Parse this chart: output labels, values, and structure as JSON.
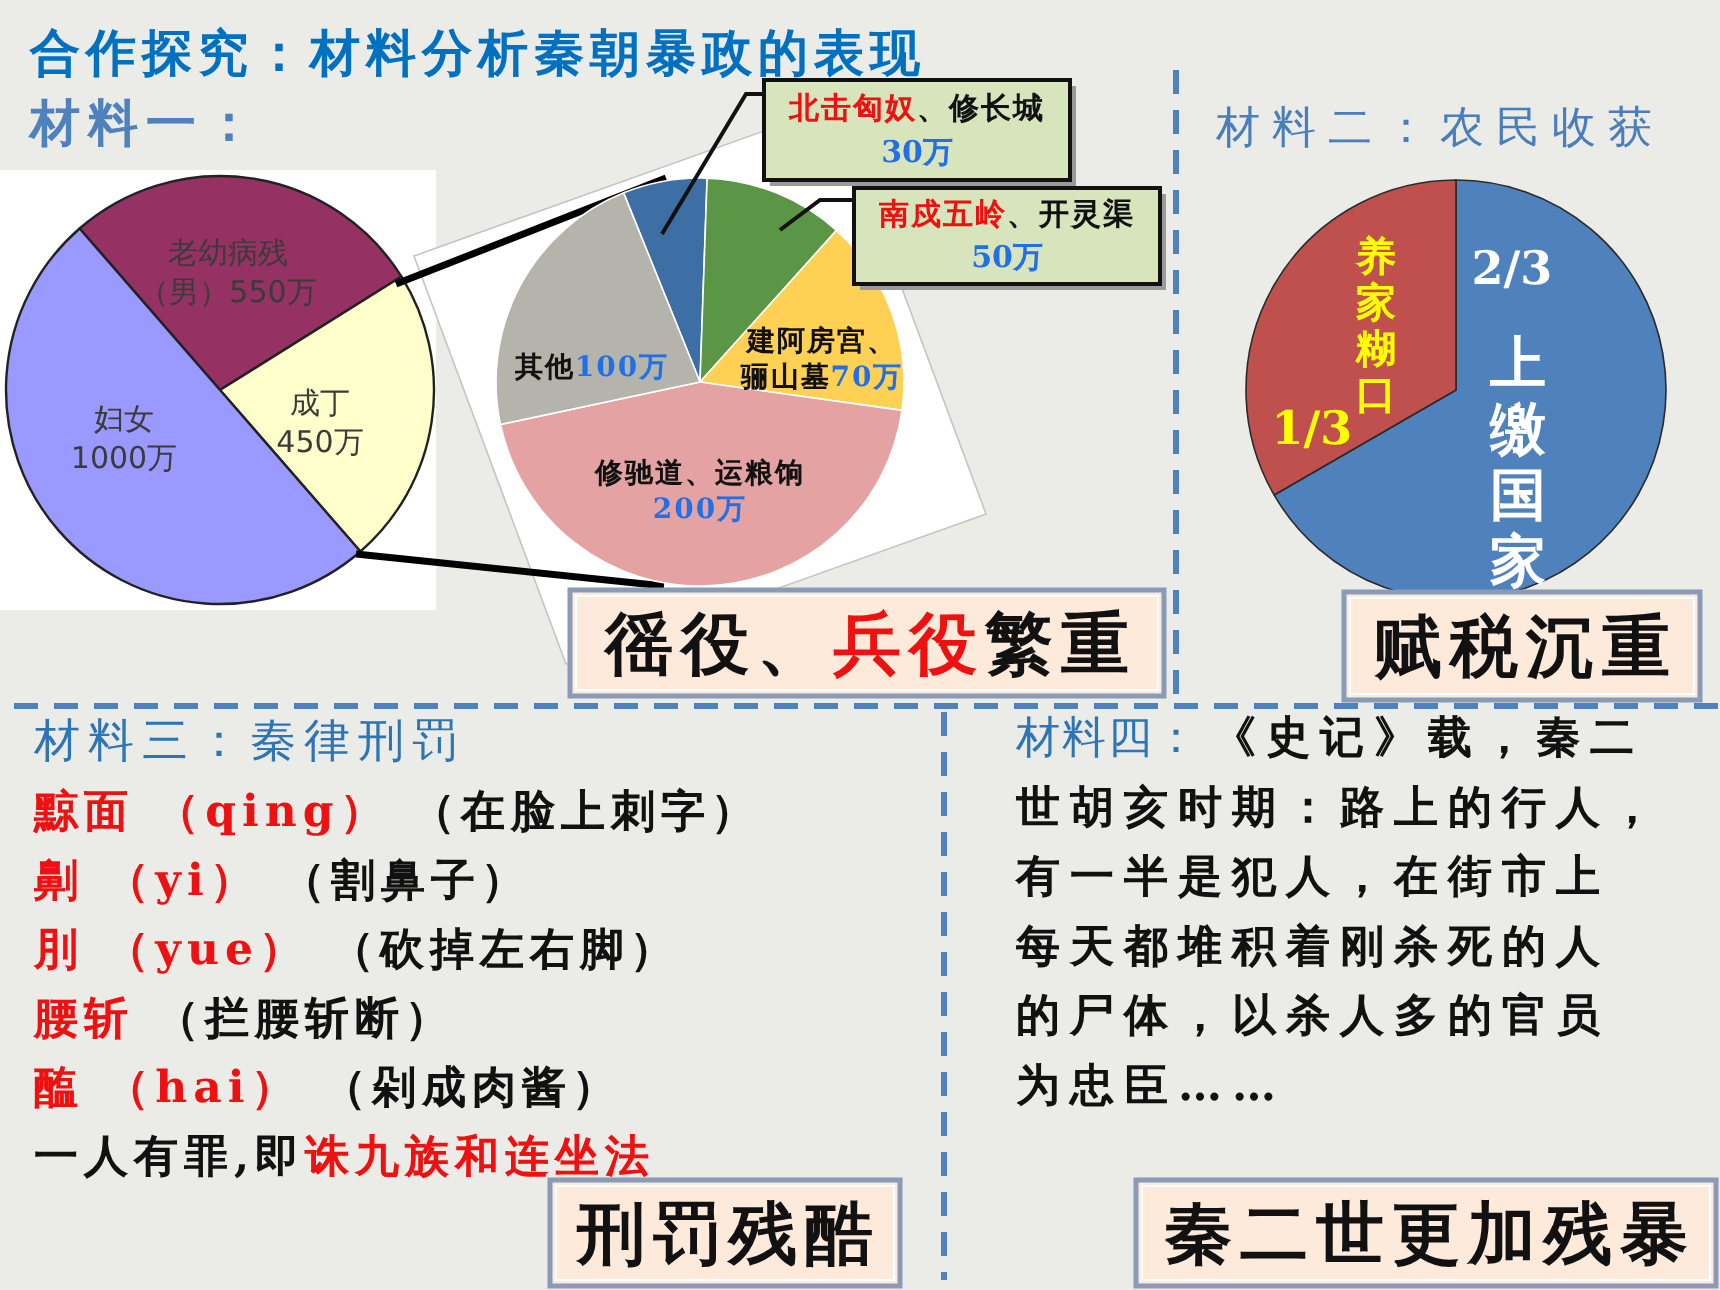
{
  "chart_data": [
    {
      "type": "pie",
      "title": "合作探究：材料分析秦朝暴政的表现",
      "subtitle": "材料一：",
      "categories": [
        "老幼病残（男）",
        "成丁",
        "妇女"
      ],
      "values": [
        550,
        450,
        1000
      ],
      "value_labels": [
        "550万",
        "450万",
        "1000万"
      ],
      "colors": [
        "#953163",
        "#ffffcc",
        "#9999ff"
      ]
    },
    {
      "type": "pie",
      "categories": [
        "**北击匈奴**、修长城",
        "**南戍五岭**、开灵渠",
        "建阿房宫、骊山墓",
        "修驰道、运粮饷",
        "其他"
      ],
      "values": [
        30,
        50,
        70,
        200,
        100
      ],
      "value_labels": [
        "30万",
        "50万",
        "70万",
        "200万",
        "100万"
      ],
      "colors": [
        "#3d6fa5",
        "#5a9645",
        "#fed154",
        "#e5a2a2",
        "#b4b4ac"
      ],
      "annotations": [
        "徭役、**兵役**繁重"
      ]
    },
    {
      "type": "pie",
      "title": "材料二：农民收获",
      "categories": [
        "上缴国家",
        "养家糊口"
      ],
      "values": [
        0.6667,
        0.3333
      ],
      "value_labels": [
        "2/3",
        "1/3"
      ],
      "colors": [
        "#4f81bd",
        "#c0504d"
      ],
      "annotations": [
        "赋税沉重"
      ]
    },
    {
      "type": "other",
      "title": "材料三：秦律刑罚",
      "annotations": [
        "**黥面 （qing）** （在脸上刺字）",
        "**劓 （yi）** （割鼻子）",
        "**刖 （yue）** （砍掉左右脚）",
        "**腰斩** （拦腰斩断）",
        "**醢 （hai）** （剁成肉酱）",
        "一人有罪,即**诛九族和连坐法**",
        "刑罚残酷"
      ]
    },
    {
      "type": "other",
      "title": "材料四：",
      "annotations": [
        "《史记》载，秦二世胡亥时期：路上的行人，有一半是犯人，在街市上每天都堆积着刚杀死的人的尸体，以杀人多的官员为忠臣……",
        "秦二世更加残暴"
      ]
    }
  ]
}
